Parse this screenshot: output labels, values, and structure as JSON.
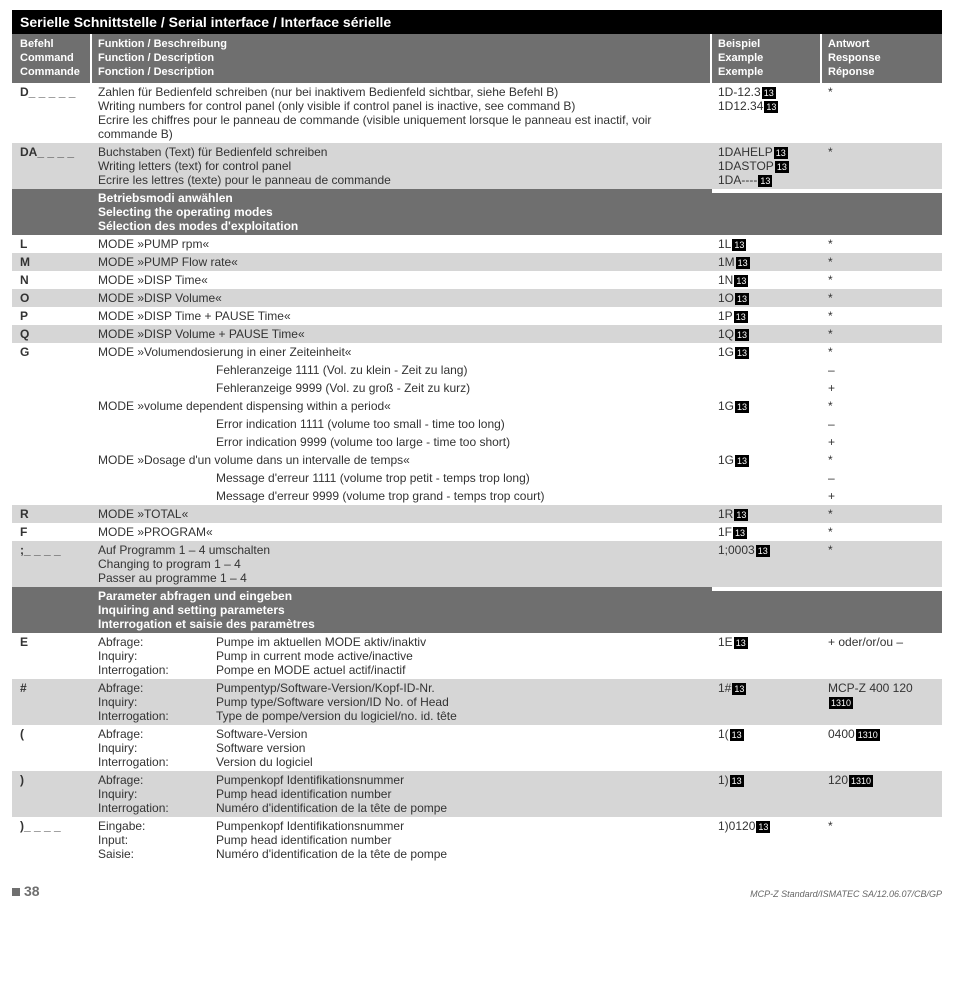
{
  "title": "Serielle Schnittstelle / Serial interface / Interface sérielle",
  "header": {
    "cmd": [
      "Befehl",
      "Command",
      "Commande"
    ],
    "func": [
      "Funktion / Beschreibung",
      "Function / Description",
      "Fonction / Description"
    ],
    "ex": [
      "Beispiel",
      "Example",
      "Exemple"
    ],
    "resp": [
      "Antwort",
      "Response",
      "Réponse"
    ]
  },
  "rows": [
    {
      "cmd": "D_ _ _ _ _",
      "func": [
        "Zahlen für Bedienfeld schreiben (nur bei inaktivem Bedienfeld sichtbar, siehe Befehl B)",
        "Writing numbers for control panel (only visible if control panel is inactive, see command B)",
        "Ecrire les chiffres pour le panneau de commande (visible uniquement lorsque le panneau est inactif, voir commande B)"
      ],
      "ex": [
        "1D-12.3",
        "1D12.34"
      ],
      "excr": [
        true,
        true
      ],
      "resp": [
        "*"
      ]
    },
    {
      "shade": true,
      "cmd": "DA_ _ _ _",
      "func": [
        "Buchstaben (Text) für Bedienfeld schreiben",
        "Writing letters (text) for control panel",
        "Ecrire les lettres (texte) pour le panneau de commande"
      ],
      "ex": [
        "1DAHELP",
        "1DASTOP",
        "1DA----"
      ],
      "excr": [
        true,
        true,
        true
      ],
      "resp": [
        "*"
      ]
    },
    {
      "section": true,
      "func": [
        "Betriebsmodi anwählen",
        "Selecting the operating modes",
        "Sélection des modes d'exploitation"
      ]
    },
    {
      "cmd": "L",
      "func": [
        "MODE »PUMP rpm«"
      ],
      "ex": [
        "1L"
      ],
      "excr": [
        true
      ],
      "resp": [
        "*"
      ]
    },
    {
      "shade": true,
      "cmd": "M",
      "func": [
        "MODE »PUMP Flow rate«"
      ],
      "ex": [
        "1M"
      ],
      "excr": [
        true
      ],
      "resp": [
        "*"
      ]
    },
    {
      "cmd": "N",
      "func": [
        "MODE »DISP Time«"
      ],
      "ex": [
        "1N"
      ],
      "excr": [
        true
      ],
      "resp": [
        "*"
      ]
    },
    {
      "shade": true,
      "cmd": "O",
      "func": [
        "MODE »DISP Volume«"
      ],
      "ex": [
        "1O"
      ],
      "excr": [
        true
      ],
      "resp": [
        "*"
      ]
    },
    {
      "cmd": "P",
      "func": [
        "MODE »DISP Time + PAUSE Time«"
      ],
      "ex": [
        "1P"
      ],
      "excr": [
        true
      ],
      "resp": [
        "*"
      ]
    },
    {
      "shade": true,
      "cmd": "Q",
      "func": [
        "MODE »DISP Volume + PAUSE Time«"
      ],
      "ex": [
        "1Q"
      ],
      "excr": [
        true
      ],
      "resp": [
        "*"
      ]
    },
    {
      "cmd": "G",
      "func": [
        "MODE »Volumendosierung in einer Zeiteinheit«"
      ],
      "ex": [
        "1G"
      ],
      "excr": [
        true
      ],
      "resp": [
        "*"
      ]
    },
    {
      "indent": true,
      "func": [
        "Fehleranzeige 1111 (Vol. zu klein - Zeit zu lang)"
      ],
      "resp": [
        "–"
      ]
    },
    {
      "indent": true,
      "func": [
        "Fehleranzeige 9999  (Vol. zu groß - Zeit zu kurz)"
      ],
      "resp": [
        "+"
      ]
    },
    {
      "func": [
        "MODE »volume dependent dispensing within a period«"
      ],
      "ex": [
        "1G"
      ],
      "excr": [
        true
      ],
      "resp": [
        "*"
      ]
    },
    {
      "indent": true,
      "func": [
        "Error indication 1111 (volume too small - time too long)"
      ],
      "resp": [
        "–"
      ]
    },
    {
      "indent": true,
      "func": [
        "Error indication 9999  (volume too large - time too short)"
      ],
      "resp": [
        "+"
      ]
    },
    {
      "func": [
        "MODE »Dosage d'un volume dans un intervalle de temps«"
      ],
      "ex": [
        "1G"
      ],
      "excr": [
        true
      ],
      "resp": [
        "*"
      ]
    },
    {
      "indent": true,
      "func": [
        "Message d'erreur 1111 (volume trop petit - temps trop long)"
      ],
      "resp": [
        "–"
      ]
    },
    {
      "indent": true,
      "func": [
        "Message d'erreur 9999 (volume trop grand - temps trop court)"
      ],
      "resp": [
        "+"
      ]
    },
    {
      "shade": true,
      "cmd": "R",
      "func": [
        "MODE »TOTAL«"
      ],
      "ex": [
        "1R"
      ],
      "excr": [
        true
      ],
      "resp": [
        "*"
      ]
    },
    {
      "cmd": "F",
      "func": [
        "MODE »PROGRAM«"
      ],
      "ex": [
        "1F"
      ],
      "excr": [
        true
      ],
      "resp": [
        "*"
      ]
    },
    {
      "shade": true,
      "cmd": ";_ _ _ _",
      "func": [
        "Auf Programm 1 – 4 umschalten",
        "Changing to program 1 – 4",
        "Passer au programme 1 – 4"
      ],
      "ex": [
        "1;0003"
      ],
      "excr": [
        true
      ],
      "resp": [
        "*"
      ]
    },
    {
      "section": true,
      "func": [
        "Parameter abfragen und eingeben",
        "Inquiring and setting parameters",
        "Interrogation et saisie des paramètres"
      ]
    },
    {
      "cmd": "E",
      "func2": [
        [
          "Abfrage:",
          "Pumpe im aktuellen MODE aktiv/inaktiv"
        ],
        [
          "Inquiry:",
          "Pump in current mode active/inactive"
        ],
        [
          "Interrogation:",
          "Pompe en MODE actuel actif/inactif"
        ]
      ],
      "ex": [
        "1E"
      ],
      "excr": [
        true
      ],
      "resp": [
        "+ oder/or/ou –"
      ]
    },
    {
      "shade": true,
      "cmd": "#",
      "func2": [
        [
          "Abfrage:",
          "Pumpentyp/Software-Version/Kopf-ID-Nr."
        ],
        [
          "Inquiry:",
          "Pump type/Software version/ID No. of Head"
        ],
        [
          "Interrogation:",
          "Type de pompe/version du logiciel/no. id. tête"
        ]
      ],
      "ex": [
        "1#"
      ],
      "excr": [
        true
      ],
      "resp": [
        "MCP-Z 400 120"
      ],
      "respcrlf": [
        true
      ]
    },
    {
      "cmd": "(",
      "func2": [
        [
          "Abfrage:",
          "Software-Version"
        ],
        [
          "Inquiry:",
          "Software version"
        ],
        [
          "Interrogation:",
          "Version du logiciel"
        ]
      ],
      "ex": [
        "1("
      ],
      "excr": [
        true
      ],
      "resp": [
        "0400"
      ],
      "respcrlf": [
        true
      ]
    },
    {
      "shade": true,
      "cmd": ")",
      "func2": [
        [
          "Abfrage:",
          "Pumpenkopf Identifikationsnummer"
        ],
        [
          "Inquiry:",
          "Pump head identification number"
        ],
        [
          "Interrogation:",
          "Numéro d'identification de la tête de pompe"
        ]
      ],
      "ex": [
        "1)"
      ],
      "excr": [
        true
      ],
      "resp": [
        "120"
      ],
      "respcrlf": [
        true
      ]
    },
    {
      "cmd": ")_ _ _ _",
      "func2": [
        [
          "Eingabe:",
          "Pumpenkopf Identifikationsnummer"
        ],
        [
          "Input:",
          "Pump head identification number"
        ],
        [
          "Saisie:",
          "Numéro d'identification de la tête de pompe"
        ]
      ],
      "ex": [
        "1)0120"
      ],
      "excr": [
        true
      ],
      "resp": [
        "*"
      ]
    }
  ],
  "cr_label": "13",
  "crlf_label": "1310",
  "page_number": "38",
  "doc_id": "MCP-Z Standard/ISMATEC SA/12.06.07/CB/GP"
}
